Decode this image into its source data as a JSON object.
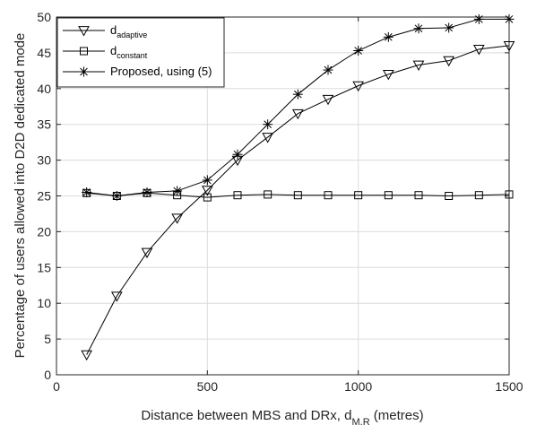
{
  "chart_data": {
    "type": "line",
    "xlabel": {
      "main": "Distance between MBS and DRx, d",
      "sub": "M,R",
      "tail": " (metres)"
    },
    "ylabel": "Percentage of users allowed into D2D dedicated mode",
    "xlim": [
      0,
      1500
    ],
    "ylim": [
      0,
      50
    ],
    "xticks": [
      0,
      500,
      1000,
      1500
    ],
    "yticks": [
      0,
      5,
      10,
      15,
      20,
      25,
      30,
      35,
      40,
      45,
      50
    ],
    "grid": true,
    "legend_position": "top-left",
    "x": [
      100,
      200,
      300,
      400,
      500,
      600,
      700,
      800,
      900,
      1000,
      1100,
      1200,
      1300,
      1400,
      1500
    ],
    "series": [
      {
        "name": "d",
        "name_sub": "adaptive",
        "marker": "triangle-down",
        "values": [
          2.8,
          11.0,
          17.1,
          21.9,
          25.8,
          30.0,
          33.2,
          36.5,
          38.5,
          40.4,
          42.0,
          43.3,
          43.9,
          45.5,
          46.0
        ]
      },
      {
        "name": "d",
        "name_sub": "constant",
        "marker": "square",
        "values": [
          25.4,
          25.0,
          25.4,
          25.1,
          24.8,
          25.1,
          25.2,
          25.1,
          25.1,
          25.1,
          25.1,
          25.1,
          25.0,
          25.1,
          25.2
        ]
      },
      {
        "name": "Proposed, using (5)",
        "name_sub": "",
        "marker": "asterisk",
        "values": [
          25.5,
          25.0,
          25.5,
          25.7,
          27.2,
          30.8,
          35.0,
          39.2,
          42.6,
          45.3,
          47.2,
          48.4,
          48.5,
          49.7,
          49.7
        ]
      }
    ]
  }
}
